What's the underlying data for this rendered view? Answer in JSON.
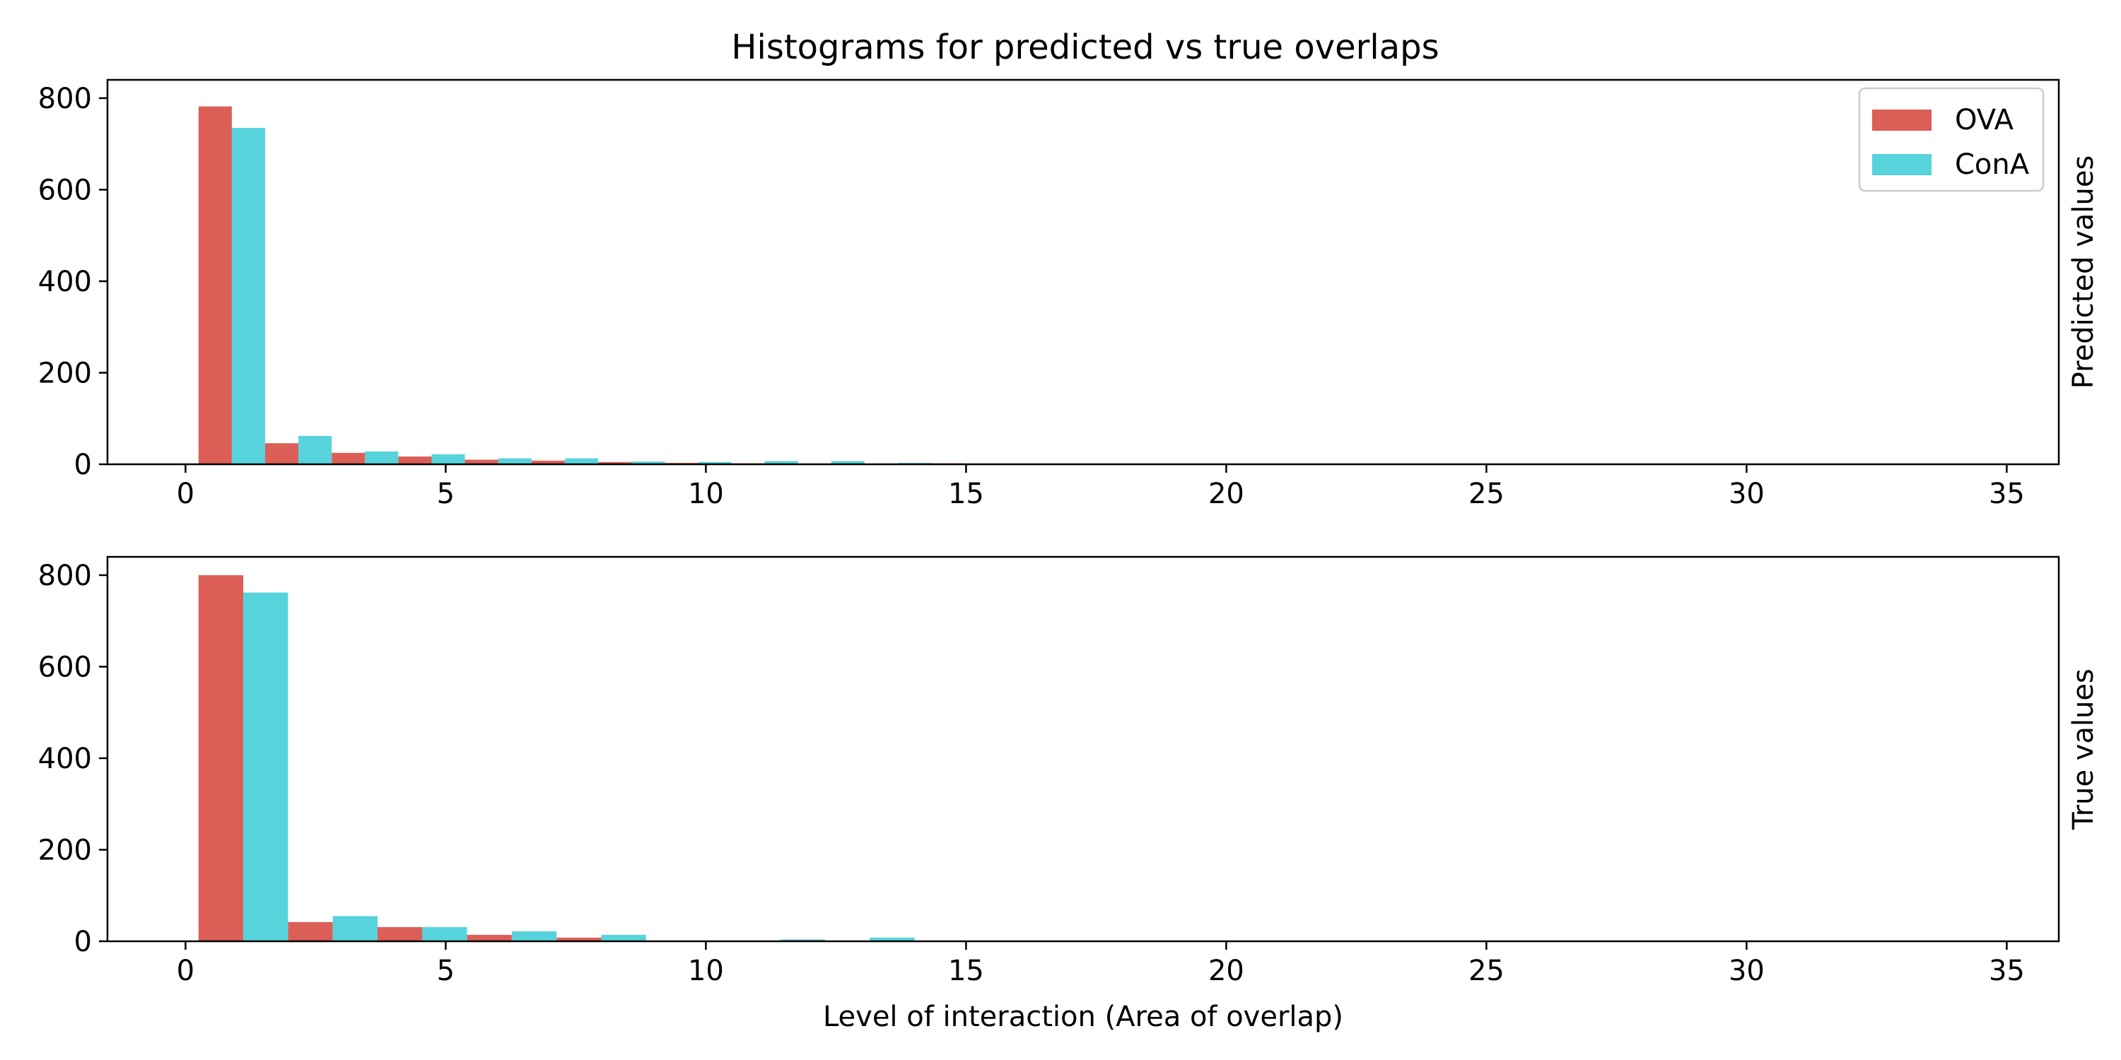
{
  "title": "Histograms for predicted vs true overlaps",
  "colors": {
    "OVA": "#db5f57",
    "ConA": "#57d3db"
  },
  "legend": {
    "placement": "upper-right",
    "items": [
      "OVA",
      "ConA"
    ]
  },
  "chart_data": [
    {
      "type": "bar",
      "title": "Histograms for predicted vs true overlaps",
      "xlabel": "",
      "ylabel": "Predicted values",
      "xlim": [
        -1.5,
        36
      ],
      "ylim": [
        0,
        840
      ],
      "xticks": [
        0,
        5,
        10,
        15,
        20,
        25,
        30,
        35
      ],
      "yticks": [
        0,
        200,
        400,
        600,
        800
      ],
      "bin_edges": [
        0.25,
        1.53,
        2.81,
        4.09,
        5.37,
        6.65,
        7.93,
        9.21,
        10.49,
        11.77,
        13.05,
        14.33,
        15.61
      ],
      "legend": "upper right",
      "series": [
        {
          "name": "OVA",
          "values": [
            782,
            46,
            25,
            17,
            10,
            8,
            5,
            3,
            2,
            1,
            1,
            2
          ]
        },
        {
          "name": "ConA",
          "values": [
            735,
            62,
            28,
            22,
            13,
            13,
            6,
            5,
            7,
            7,
            3,
            1
          ]
        }
      ]
    },
    {
      "type": "bar",
      "xlabel": "Level of interaction (Area of overlap)",
      "ylabel": "True values",
      "xlim": [
        -1.5,
        36
      ],
      "ylim": [
        0,
        840
      ],
      "xticks": [
        0,
        5,
        10,
        15,
        20,
        25,
        30,
        35
      ],
      "yticks": [
        0,
        200,
        400,
        600,
        800
      ],
      "bin_edges": [
        0.25,
        1.97,
        3.69,
        5.41,
        7.13,
        8.85,
        10.57,
        12.29,
        14.01,
        15.73
      ],
      "series": [
        {
          "name": "OVA",
          "values": [
            800,
            42,
            31,
            14,
            8,
            0,
            0,
            0,
            0
          ]
        },
        {
          "name": "ConA",
          "values": [
            762,
            55,
            31,
            22,
            14,
            0,
            4,
            8,
            0
          ]
        }
      ]
    }
  ]
}
